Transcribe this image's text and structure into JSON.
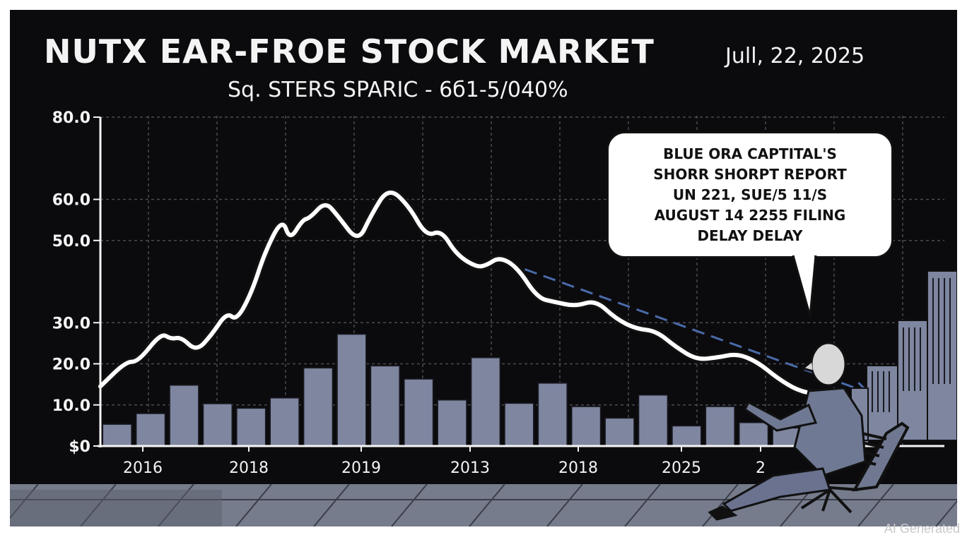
{
  "header": {
    "title": "NUTX EAR-FROE STOCK  MARKET",
    "date": "Jull, 22, 2025",
    "subtitle": "Sq. STERS SPARIC -  6б1-5/040%"
  },
  "callout": {
    "text": "BLUE ORA CAPTITAL'S\nSHORR SHORPT REPORT\nUN 221, SUE/5 11/S\nAUGUST 14 2255 FILING\nDELAY DELAY"
  },
  "watermark": "AI Generated",
  "colors": {
    "background": "#0b0b0e",
    "bars": "#7e86a0",
    "line": "#ffffff",
    "trend": "#4a6aa8",
    "grid": "#4a4a52",
    "ground": "#767c8c"
  },
  "chart_data": {
    "type": "bar",
    "ylim": [
      0,
      80
    ],
    "y_ticks": [
      {
        "value": 80,
        "label": "80.0"
      },
      {
        "value": 60,
        "label": "60.0"
      },
      {
        "value": 50,
        "label": "50.0"
      },
      {
        "value": 30,
        "label": "30.0"
      },
      {
        "value": 20,
        "label": "20.0"
      },
      {
        "value": 10,
        "label": "10.0"
      },
      {
        "value": 0,
        "label": "$0"
      }
    ],
    "x_tick_labels": [
      "2016",
      "2018",
      "2019",
      "2013",
      "2018",
      "2025",
      "2"
    ],
    "bar_values": [
      5.3,
      7.9,
      14.8,
      10.3,
      9.2,
      11.7,
      19.0,
      27.2,
      19.5,
      16.3,
      11.2,
      21.5,
      10.4,
      15.3,
      9.6,
      6.8,
      12.4,
      4.9,
      9.6,
      5.7,
      4.4,
      6.6,
      2.9
    ],
    "price_line": [
      [
        0.0,
        14.5
      ],
      [
        1.0,
        20.5
      ],
      [
        1.5,
        20.5
      ],
      [
        2.4,
        27.5
      ],
      [
        2.8,
        26.0
      ],
      [
        3.2,
        26.5
      ],
      [
        3.8,
        23.0
      ],
      [
        4.4,
        27.0
      ],
      [
        5.0,
        32.5
      ],
      [
        5.4,
        30.5
      ],
      [
        6.0,
        37.5
      ],
      [
        6.5,
        47.0
      ],
      [
        7.2,
        55.5
      ],
      [
        7.5,
        50.0
      ],
      [
        8.0,
        55.0
      ],
      [
        8.3,
        55.5
      ],
      [
        8.9,
        59.5
      ],
      [
        9.4,
        56.0
      ],
      [
        10.2,
        49.5
      ],
      [
        10.7,
        56.0
      ],
      [
        11.4,
        63.0
      ],
      [
        12.2,
        58.5
      ],
      [
        12.9,
        51.0
      ],
      [
        13.5,
        52.5
      ],
      [
        14.1,
        46.5
      ],
      [
        14.9,
        43.5
      ],
      [
        15.3,
        44.0
      ],
      [
        15.8,
        46.0
      ],
      [
        16.5,
        43.5
      ],
      [
        17.3,
        36.0
      ],
      [
        18.0,
        35.0
      ],
      [
        18.8,
        34.0
      ],
      [
        19.6,
        35.5
      ],
      [
        20.4,
        31.0
      ],
      [
        21.2,
        28.5
      ],
      [
        22.0,
        28.0
      ],
      [
        22.8,
        24.0
      ],
      [
        23.6,
        21.0
      ],
      [
        24.4,
        21.5
      ],
      [
        25.2,
        22.5
      ],
      [
        26.0,
        20.5
      ],
      [
        26.8,
        16.5
      ],
      [
        27.6,
        13.5
      ],
      [
        28.4,
        12.5
      ],
      [
        29.2,
        11.0
      ],
      [
        30.2,
        8.5
      ]
    ],
    "trend_line": [
      [
        16.8,
        43.0
      ],
      [
        30.4,
        13.0
      ]
    ]
  }
}
